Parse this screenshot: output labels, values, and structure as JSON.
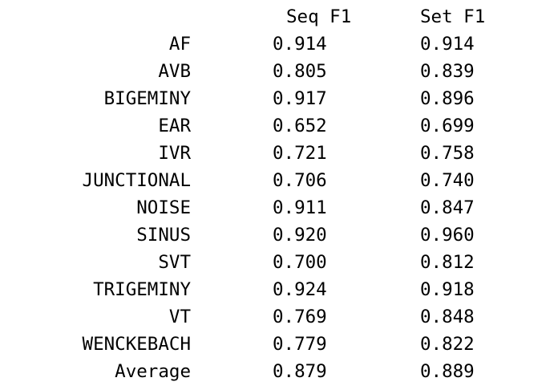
{
  "headers": {
    "seq_f1": "Seq F1",
    "set_f1": "Set F1"
  },
  "rows": [
    {
      "label": "AF",
      "seq_f1": "0.914",
      "set_f1": "0.914"
    },
    {
      "label": "AVB",
      "seq_f1": "0.805",
      "set_f1": "0.839"
    },
    {
      "label": "BIGEMINY",
      "seq_f1": "0.917",
      "set_f1": "0.896"
    },
    {
      "label": "EAR",
      "seq_f1": "0.652",
      "set_f1": "0.699"
    },
    {
      "label": "IVR",
      "seq_f1": "0.721",
      "set_f1": "0.758"
    },
    {
      "label": "JUNCTIONAL",
      "seq_f1": "0.706",
      "set_f1": "0.740"
    },
    {
      "label": "NOISE",
      "seq_f1": "0.911",
      "set_f1": "0.847"
    },
    {
      "label": "SINUS",
      "seq_f1": "0.920",
      "set_f1": "0.960"
    },
    {
      "label": "SVT",
      "seq_f1": "0.700",
      "set_f1": "0.812"
    },
    {
      "label": "TRIGEMINY",
      "seq_f1": "0.924",
      "set_f1": "0.918"
    },
    {
      "label": "VT",
      "seq_f1": "0.769",
      "set_f1": "0.848"
    },
    {
      "label": "WENCKEBACH",
      "seq_f1": "0.779",
      "set_f1": "0.822"
    },
    {
      "label": "Average",
      "seq_f1": "0.879",
      "set_f1": "0.889"
    }
  ]
}
